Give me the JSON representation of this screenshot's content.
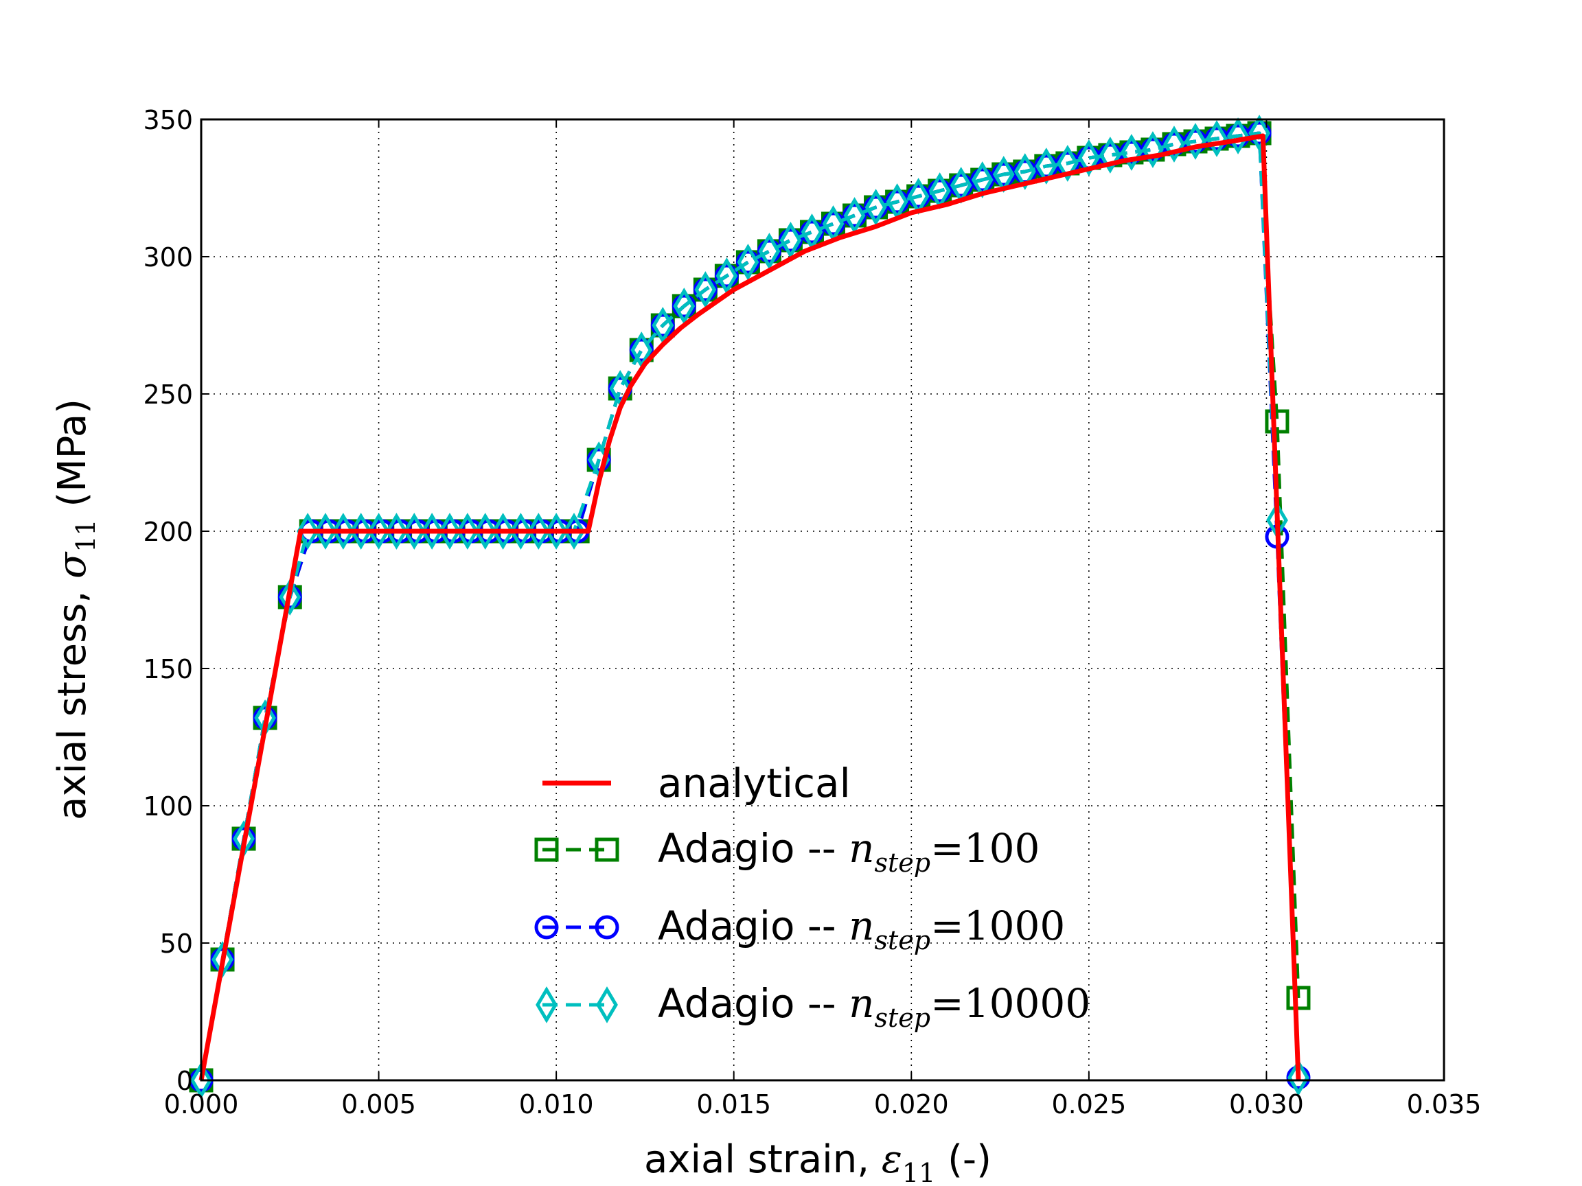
{
  "chart_data": {
    "type": "line",
    "title": "",
    "xlabel": "axial strain, ε11 (-)",
    "ylabel": "axial stress, σ11 (MPa)",
    "xlabel_parts": {
      "prefix": "axial strain, ",
      "symbol": "ε",
      "sub": "11",
      "suffix": " (-)"
    },
    "ylabel_parts": {
      "prefix": "axial stress, ",
      "symbol": "σ",
      "sub": "11",
      "suffix": " (MPa)"
    },
    "xlim": [
      0,
      0.035
    ],
    "ylim": [
      0,
      350
    ],
    "grid": true,
    "x_ticks": [
      0.0,
      0.005,
      0.01,
      0.015,
      0.02,
      0.025,
      0.03,
      0.035
    ],
    "x_tick_labels": [
      "0.000",
      "0.005",
      "0.010",
      "0.015",
      "0.020",
      "0.025",
      "0.030",
      "0.035"
    ],
    "y_ticks": [
      0,
      50,
      100,
      150,
      200,
      250,
      300,
      350
    ],
    "y_tick_labels": [
      "0",
      "50",
      "100",
      "150",
      "200",
      "250",
      "300",
      "350"
    ],
    "legend_placement": "lower-center",
    "series": [
      {
        "name": "analytical",
        "label": "analytical",
        "color": "#ff0000",
        "style": "solid",
        "marker": "none",
        "x": [
          0,
          0.0028,
          0.0109,
          0.0112,
          0.0115,
          0.0118,
          0.0121,
          0.0125,
          0.013,
          0.0135,
          0.014,
          0.015,
          0.016,
          0.017,
          0.018,
          0.019,
          0.02,
          0.021,
          0.022,
          0.023,
          0.024,
          0.025,
          0.026,
          0.027,
          0.028,
          0.029,
          0.0299,
          0.0309
        ],
        "y": [
          0,
          200,
          200,
          218,
          233,
          245,
          253,
          261,
          268,
          274,
          279,
          288,
          295,
          302,
          307,
          311,
          316,
          319,
          323,
          326,
          329,
          332,
          335,
          337,
          340,
          342,
          344,
          0
        ]
      },
      {
        "name": "Adagio -- n_step=100",
        "label_prefix": "Adagio -- ",
        "label_n": "n",
        "label_sub": "step",
        "label_eq": "=100",
        "color": "#008000",
        "style": "dashed",
        "marker": "square",
        "x": [
          0,
          0.0006,
          0.0012,
          0.0018,
          0.0025,
          0.0031,
          0.0036,
          0.0041,
          0.0046,
          0.0051,
          0.0056,
          0.0061,
          0.0066,
          0.0071,
          0.0076,
          0.0081,
          0.0086,
          0.0091,
          0.0096,
          0.0101,
          0.0106,
          0.0112,
          0.0118,
          0.0124,
          0.013,
          0.0136,
          0.0142,
          0.0148,
          0.0154,
          0.016,
          0.0166,
          0.0172,
          0.0178,
          0.0184,
          0.019,
          0.0196,
          0.0202,
          0.0208,
          0.0214,
          0.022,
          0.0226,
          0.0232,
          0.0238,
          0.0244,
          0.025,
          0.0256,
          0.0262,
          0.0268,
          0.0274,
          0.028,
          0.0286,
          0.0292,
          0.0298,
          0.0303,
          0.0309
        ],
        "y": [
          0,
          44,
          88,
          132,
          176,
          200,
          200,
          200,
          200,
          200,
          200,
          200,
          200,
          200,
          200,
          200,
          200,
          200,
          200,
          200,
          200,
          226,
          252,
          266,
          275,
          282,
          288,
          293,
          298,
          302,
          306,
          309,
          312,
          315,
          318,
          320,
          322,
          324,
          326,
          328,
          330,
          331,
          333,
          334,
          336,
          337,
          338,
          339,
          341,
          342,
          343,
          344,
          345,
          240,
          30
        ]
      },
      {
        "name": "Adagio -- n_step=1000",
        "label_prefix": "Adagio -- ",
        "label_n": "n",
        "label_sub": "step",
        "label_eq": "=1000",
        "color": "#0000ff",
        "style": "dashed",
        "marker": "circle",
        "x": [
          0,
          0.0006,
          0.0012,
          0.0018,
          0.0025,
          0.0031,
          0.0036,
          0.0041,
          0.0046,
          0.0051,
          0.0056,
          0.0061,
          0.0066,
          0.0071,
          0.0076,
          0.0081,
          0.0086,
          0.0091,
          0.0096,
          0.0101,
          0.0106,
          0.0112,
          0.0118,
          0.0124,
          0.013,
          0.0136,
          0.0142,
          0.0148,
          0.0154,
          0.016,
          0.0166,
          0.0172,
          0.0178,
          0.0184,
          0.019,
          0.0196,
          0.0202,
          0.0208,
          0.0214,
          0.022,
          0.0226,
          0.0232,
          0.0238,
          0.0244,
          0.025,
          0.0256,
          0.0262,
          0.0268,
          0.0274,
          0.028,
          0.0286,
          0.0292,
          0.0298,
          0.0303,
          0.0309
        ],
        "y": [
          0,
          44,
          88,
          132,
          176,
          200,
          200,
          200,
          200,
          200,
          200,
          200,
          200,
          200,
          200,
          200,
          200,
          200,
          200,
          200,
          200,
          226,
          252,
          266,
          275,
          282,
          288,
          293,
          298,
          302,
          306,
          309,
          312,
          315,
          318,
          320,
          322,
          324,
          326,
          328,
          330,
          331,
          333,
          334,
          336,
          337,
          338,
          339,
          341,
          342,
          343,
          344,
          345,
          198,
          1
        ]
      },
      {
        "name": "Adagio -- n_step=10000",
        "label_prefix": "Adagio -- ",
        "label_n": "n",
        "label_sub": "step",
        "label_eq": "=10000",
        "color": "#00bfbf",
        "style": "dashed",
        "marker": "diamond",
        "x": [
          0,
          0.0006,
          0.0012,
          0.0018,
          0.0025,
          0.003,
          0.0035,
          0.004,
          0.0045,
          0.005,
          0.0055,
          0.006,
          0.0065,
          0.007,
          0.0075,
          0.008,
          0.0085,
          0.009,
          0.0095,
          0.01,
          0.0105,
          0.0112,
          0.0118,
          0.0124,
          0.013,
          0.0136,
          0.0142,
          0.0148,
          0.0154,
          0.016,
          0.0166,
          0.0172,
          0.0178,
          0.0184,
          0.019,
          0.0196,
          0.0202,
          0.0208,
          0.0214,
          0.022,
          0.0226,
          0.0232,
          0.0238,
          0.0244,
          0.025,
          0.0256,
          0.0262,
          0.0268,
          0.0274,
          0.028,
          0.0286,
          0.0292,
          0.0298,
          0.0303,
          0.0309
        ],
        "y": [
          0,
          44,
          88,
          132,
          176,
          200,
          200,
          200,
          200,
          200,
          200,
          200,
          200,
          200,
          200,
          200,
          200,
          200,
          200,
          200,
          200,
          226,
          252,
          266,
          275,
          282,
          288,
          293,
          298,
          302,
          306,
          309,
          312,
          315,
          318,
          320,
          322,
          324,
          326,
          328,
          330,
          331,
          333,
          334,
          336,
          337,
          338,
          339,
          341,
          342,
          343,
          344,
          345,
          204,
          1
        ]
      }
    ]
  }
}
